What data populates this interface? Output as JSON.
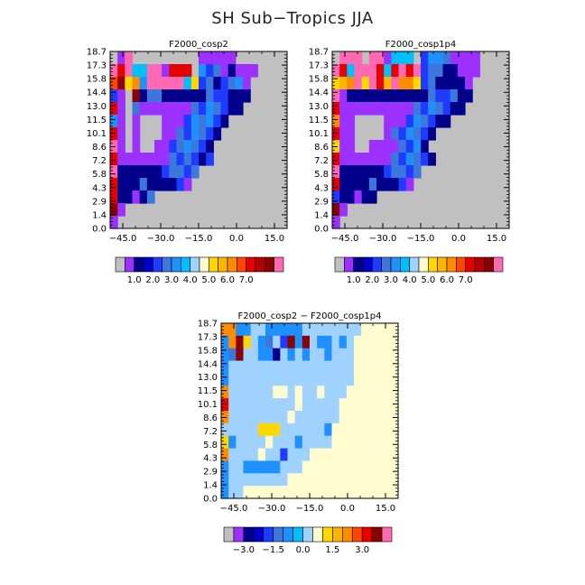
{
  "figure": {
    "title": "SH Sub−Tropics JJA"
  },
  "chart_data": [
    {
      "type": "heatmap",
      "title": "F2000_cosp2",
      "y_ticks": [
        "0.0",
        "1.4",
        "2.9",
        "4.3",
        "5.8",
        "7.2",
        "8.6",
        "10.1",
        "11.5",
        "13.0",
        "14.4",
        "15.8",
        "17.3",
        "18.7"
      ],
      "x_ticks": [
        "−45.0",
        "−30.0",
        "−15.0",
        "0.0",
        "15.0"
      ],
      "x_tick_values": [
        -45,
        -30,
        -15,
        0,
        15
      ],
      "xlim": [
        -50,
        20
      ],
      "grid": "24 x 14 cells; empty cells shown grey (missing)",
      "colorbar_labels": [
        "1.0",
        "2.0",
        "3.0",
        "4.0",
        "5.0",
        "6.0",
        "7.0"
      ],
      "rows": [
        "3JP.........VVVVV.......",
        "PRPTTPPVRRR.SMKVDVVV....",
        "ABYOSPPPPPTYMKDMKSV.....",
        "MVHBDKKDDDDDDKMMDDD.....",
        "RV.KVVVVVVVKMSKMDD......",
        "SV.V...VVVMSKSMD........",
        "RV.V...VVKMSKMD.........",
        "PV.V..VVMKSKMD..........",
        "RVVVVVVVKMKMDM..........",
        "PDDDDDDMKKMK............",
        "RDDDKDDDDMV.............",
        "RDDVDK..................",
        "BV......................",
        "V......................."
      ]
    },
    {
      "type": "heatmap",
      "title": "F2000_cosp1p4",
      "y_ticks": [
        "0.0",
        "1.4",
        "2.9",
        "4.3",
        "5.8",
        "7.2",
        "8.6",
        "10.1",
        "11.5",
        "13.0",
        "14.4",
        "15.8",
        "17.3",
        "18.7"
      ],
      "x_ticks": [
        "−45.0",
        "−30.0",
        "−15.0",
        "0.0",
        "15.0"
      ],
      "x_tick_values": [
        -45,
        -30,
        -15,
        0,
        15
      ],
      "xlim": [
        -50,
        20
      ],
      "grid": "24 x 14 cells; empty cells shown grey (missing)",
      "colorbar_labels": [
        "1.0",
        "2.0",
        "3.0",
        "4.0",
        "5.0",
        "6.0",
        "7.0"
      ],
      "rows": [
        "3PPP.PPVTTT.MSSKVVVV....",
        "PRTPPPRTRPRPMKKDDVVV....",
        "YWOPYPRWPOOYMKDDDDV.....",
        "PVDDDDDDDDDDDKMMKDD.....",
        "RVVVVVVVVVVKMSKMDD......",
        "OVV....VVVMSKMDD........",
        "RVV....VKMSKMD..........",
        "YVV..VVVVKMSD...........",
        "RVVVVVVVKMSKMD..........",
        "PDDDDDDMKKMK............",
        "RDDDDKDDDMV.............",
        "MDDVDD..................",
        "BV......................",
        "V......................."
      ]
    },
    {
      "type": "heatmap",
      "title": "F2000_cosp2 − F2000_cosp1p4",
      "y_ticks": [
        "0.0",
        "1.4",
        "2.9",
        "4.3",
        "5.8",
        "7.2",
        "8.6",
        "10.1",
        "11.5",
        "13.0",
        "14.4",
        "15.8",
        "17.3",
        "18.7"
      ],
      "x_ticks": [
        "−45.0",
        "−30.0",
        "−15.0",
        "0.0",
        "15.0"
      ],
      "x_tick_values": [
        -45,
        -30,
        -15,
        0,
        15
      ],
      "xlim": [
        -50,
        20
      ],
      "grid": "24 x 14 cells; cells outside data shown cream",
      "colorbar_labels": [
        "−3.0",
        "−1.5",
        "0.0",
        "1.5",
        "3.0"
      ],
      "rows": [
        "OOSSLLSSSSSLLLLLLLLCCCCC",
        "SOBYLSKLMBSBLSSLSLCCCCCC",
        "SKBLLSSDLSLSLLSLLLCCCCCC",
        "SLLLLLLLLLLLLLLLLLCCCCCC",
        "SLLLLLLLLLLLLLLLLLCCCCCC",
        "OLLLLLLCCLCLLCLLLCCCCCCC",
        "RLLLLLLLLLCLLLLLCCCCCCCC",
        "OLLLLLLLLCLLLLLLCCCCCCCC",
        "LLLLLYYYLLLLLLSCCCCCCCCC",
        "YSLLLLCLLLSLLLLCCCCCCCCC",
        "OLLLLCLLMLLLCCCCCCCCCCCC",
        "SLLSSSSSLLLCCCCCCCCCCCCC",
        "SLLLLLLLLCCCCCCCCCCCCCCC",
        "SLLCCCCCCCCCCCCCCCCCCCCC"
      ]
    }
  ],
  "palette": {
    "grey": "#c0c0c0",
    "cream": "#fffdd0",
    "codes": {
      "V": "#9b30ff",
      "D": "#00008b",
      "N": "#0000cd",
      "M": "#1e3cff",
      "K": "#3c78dc",
      "S": "#1e90ff",
      "T": "#00bfff",
      "L": "#a0d2ff",
      "C": "#fffdd0",
      "Y": "#ffd700",
      "W": "#ffb400",
      "O": "#ff8c00",
      "A": "#ff4500",
      "R": "#e60000",
      "B": "#8b0000",
      "P": "#ff69b4",
      "3": "#c0c0c0",
      "J": "#9b30ff"
    },
    "colorbar_main": [
      "#c0c0c0",
      "#9b30ff",
      "#00008b",
      "#0000cd",
      "#1e3cff",
      "#3c78dc",
      "#1e90ff",
      "#00bfff",
      "#a0d2ff",
      "#fffdd0",
      "#ffd700",
      "#ffb400",
      "#ff8c00",
      "#ff4500",
      "#e60000",
      "#b40000",
      "#8b0000",
      "#ff69b4"
    ],
    "colorbar_diff": [
      "#c0c0c0",
      "#9b30ff",
      "#00008b",
      "#0000cd",
      "#1e3cff",
      "#3c78dc",
      "#1e90ff",
      "#00bfff",
      "#a0d2ff",
      "#fffdd0",
      "#ffd700",
      "#ffb400",
      "#ff8c00",
      "#ff4500",
      "#e60000",
      "#8b0000",
      "#ff69b4"
    ]
  }
}
